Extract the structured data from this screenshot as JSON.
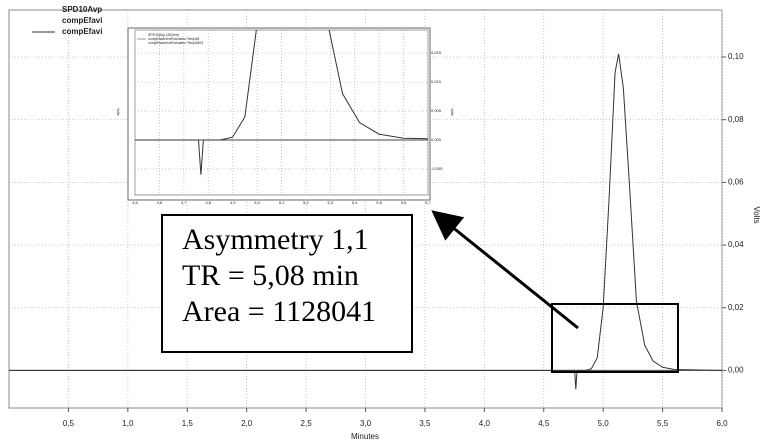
{
  "chart_data": {
    "type": "line",
    "xlabel": "Minutes",
    "ylabel": "Volts",
    "legend_items": [
      "SPD10Avp",
      "compEfavi",
      "compEfavi"
    ],
    "grid": true,
    "xlim": [
      0,
      6.0
    ],
    "ylim": [
      -0.012,
      0.115
    ],
    "xticks": [
      {
        "value": 0.5,
        "label": "0,5"
      },
      {
        "value": 1.0,
        "label": "1,0"
      },
      {
        "value": 1.5,
        "label": "1,5"
      },
      {
        "value": 2.0,
        "label": "2,0"
      },
      {
        "value": 2.5,
        "label": "2,5"
      },
      {
        "value": 3.0,
        "label": "3,0"
      },
      {
        "value": 3.5,
        "label": "3,5"
      },
      {
        "value": 4.0,
        "label": "4,0"
      },
      {
        "value": 4.5,
        "label": "4,5"
      },
      {
        "value": 5.0,
        "label": "5,0"
      },
      {
        "value": 5.5,
        "label": "5,5"
      },
      {
        "value": 6.0,
        "label": "6,0"
      }
    ],
    "yticks": [
      {
        "value": 0,
        "label": "0,00"
      },
      {
        "value": 0.02,
        "label": "0,02"
      },
      {
        "value": 0.04,
        "label": "0,04"
      },
      {
        "value": 0.06,
        "label": "0,06"
      },
      {
        "value": 0.08,
        "label": "0,08"
      },
      {
        "value": 0.1,
        "label": "0,10"
      }
    ],
    "series": [
      {
        "name": "SPD10Avp",
        "color": "#333333",
        "x": [
          0,
          4.5,
          4.76,
          4.77,
          4.78,
          4.85,
          4.9,
          4.95,
          5.0,
          5.05,
          5.1,
          5.13,
          5.17,
          5.22,
          5.28,
          5.35,
          5.42,
          5.5,
          5.6,
          6.0
        ],
        "values": [
          0,
          0,
          0,
          -0.006,
          0,
          0,
          0.0005,
          0.004,
          0.02,
          0.055,
          0.095,
          0.101,
          0.09,
          0.06,
          0.022,
          0.008,
          0.003,
          0.001,
          0.0003,
          0
        ]
      }
    ],
    "annotation": [
      "Asymmetry 1,1",
      "TR = 5,08 min",
      "Area = 1128041"
    ],
    "inset": {
      "legend_items": [
        "SPD10Avp (252nm)",
        "compEfavirenzRobustez Temp28",
        "compEfavirenzRobustez Temp2803"
      ],
      "ylabel": "Volts",
      "xlim": [
        4.5,
        5.7
      ],
      "ylim": [
        -0.0095,
        0.019
      ],
      "xticks": [
        {
          "value": 4.5,
          "label": "4,5"
        },
        {
          "value": 4.6,
          "label": "4,6"
        },
        {
          "value": 4.7,
          "label": "4,7"
        },
        {
          "value": 4.8,
          "label": "4,8"
        },
        {
          "value": 4.9,
          "label": "4,9"
        },
        {
          "value": 5.0,
          "label": "5,0"
        },
        {
          "value": 5.1,
          "label": "5,1"
        },
        {
          "value": 5.2,
          "label": "5,2"
        },
        {
          "value": 5.3,
          "label": "5,3"
        },
        {
          "value": 5.4,
          "label": "5,4"
        },
        {
          "value": 5.5,
          "label": "5,5"
        },
        {
          "value": 5.6,
          "label": "5,6"
        },
        {
          "value": 5.7,
          "label": "5,7"
        }
      ],
      "yticks": [
        {
          "value": 0.015,
          "label": "0,015"
        },
        {
          "value": 0.01,
          "label": "0,010"
        },
        {
          "value": 0.005,
          "label": "0,005"
        },
        {
          "value": 0,
          "label": "0,000"
        },
        {
          "value": -0.005,
          "label": "-0,005"
        }
      ]
    }
  }
}
